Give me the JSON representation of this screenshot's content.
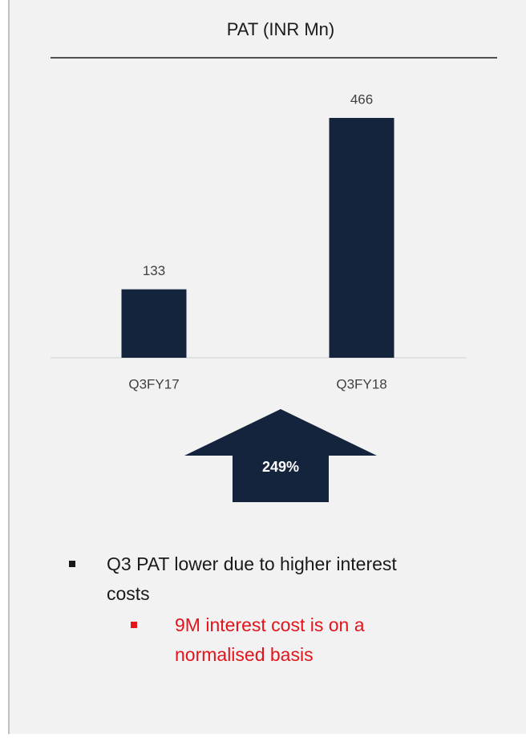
{
  "chart_data": {
    "type": "bar",
    "title": "PAT (INR Mn)",
    "categories": [
      "Q3FY17",
      "Q3FY18"
    ],
    "values": [
      133,
      466
    ],
    "color": "#15243d",
    "annotation": "249%"
  },
  "bullets": [
    {
      "text": "Q3 PAT lower due to higher interest costs",
      "color": "#1a1a1a",
      "sub": [
        {
          "text": "9M interest cost is on a normalised basis",
          "color": "#e3141b"
        }
      ]
    }
  ]
}
